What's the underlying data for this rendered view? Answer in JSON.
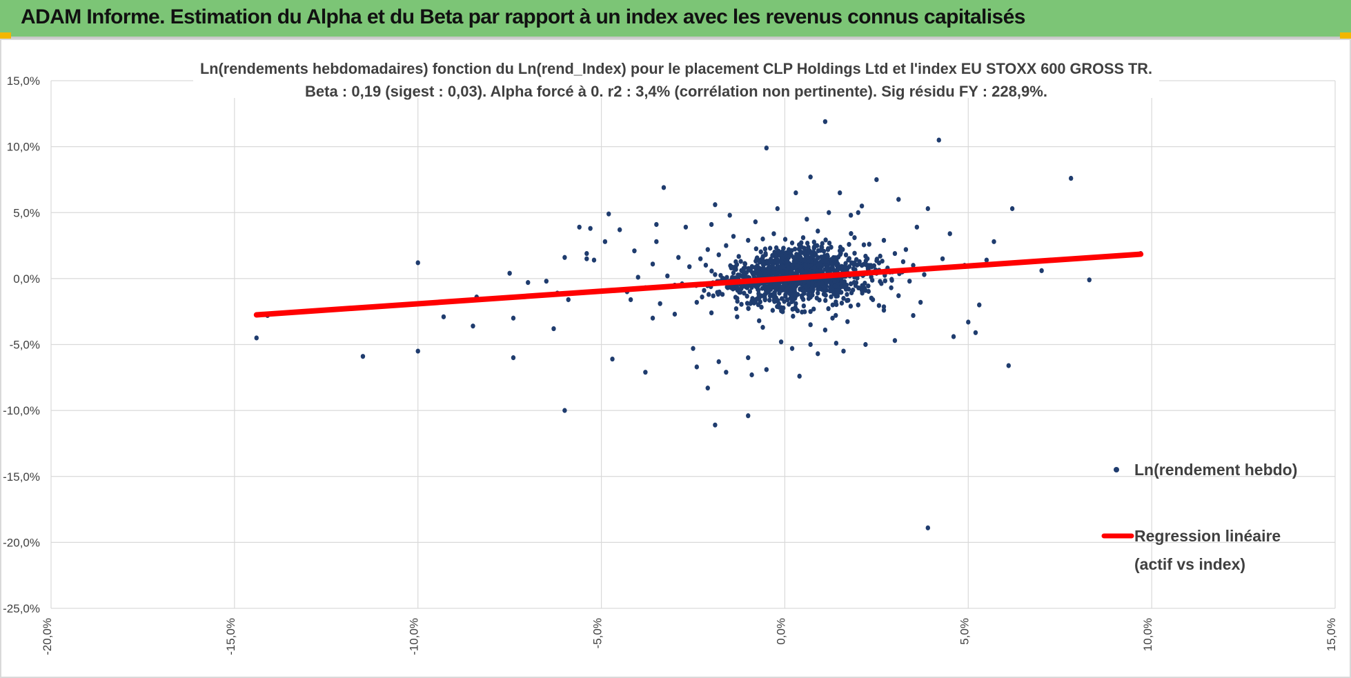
{
  "banner": {
    "title": "ADAM Informe. Estimation du Alpha et du Beta par rapport à un index avec les revenus connus capitalisés",
    "background": "#7cc576",
    "corner_color": "#f2b700"
  },
  "chart_data": {
    "type": "scatter",
    "title_line1": "Ln(rendements hebdomadaires) fonction du Ln(rend_Index) pour le placement CLP Holdings Ltd et l'index EU STOXX 600 GROSS TR.",
    "title_line2": "Beta : 0,19 (sigest : 0,03). Alpha forcé à 0. r2 : 3,4% (corrélation non pertinente). Sig résidu FY : 228,9%.",
    "xlim": [
      -20,
      15
    ],
    "ylim": [
      -25,
      15
    ],
    "x_ticks": [
      -20,
      -15,
      -10,
      -5,
      0,
      5,
      10,
      15
    ],
    "y_ticks": [
      15,
      10,
      5,
      0,
      -5,
      -10,
      -15,
      -20,
      -25
    ],
    "x_tick_labels": [
      "-20,0%",
      "-15,0%",
      "-10,0%",
      "-5,0%",
      "0,0%",
      "5,0%",
      "10,0%",
      "15,0%"
    ],
    "y_tick_labels": [
      "15,0%",
      "10,0%",
      "5,0%",
      "0,0%",
      "-5,0%",
      "-10,0%",
      "-15,0%",
      "-20,0%",
      "-25,0%"
    ],
    "grid": true,
    "legend_position": "right",
    "series": [
      {
        "name": "Ln(rendement hebdo)",
        "color": "#1f3c6e",
        "points": [
          [
            -14.4,
            -4.5
          ],
          [
            -14.1,
            -2.8
          ],
          [
            -11.5,
            -5.9
          ],
          [
            -10.0,
            1.2
          ],
          [
            -10.0,
            -5.5
          ],
          [
            -9.3,
            -2.9
          ],
          [
            -8.5,
            -3.6
          ],
          [
            -8.4,
            -1.4
          ],
          [
            -7.5,
            0.4
          ],
          [
            -7.4,
            -6.0
          ],
          [
            -7.4,
            -3.0
          ],
          [
            -7.0,
            -0.3
          ],
          [
            -6.5,
            -0.2
          ],
          [
            -6.3,
            -3.8
          ],
          [
            -6.2,
            -1.1
          ],
          [
            -6.0,
            1.6
          ],
          [
            -6.0,
            -10.0
          ],
          [
            -5.9,
            -1.6
          ],
          [
            -5.6,
            3.9
          ],
          [
            -5.4,
            1.9
          ],
          [
            -5.4,
            1.5
          ],
          [
            -5.3,
            3.8
          ],
          [
            -5.2,
            1.4
          ],
          [
            -4.9,
            2.8
          ],
          [
            -4.8,
            4.9
          ],
          [
            -4.7,
            -6.1
          ],
          [
            -4.5,
            3.7
          ],
          [
            -4.2,
            -1.6
          ],
          [
            -4.0,
            0.1
          ],
          [
            -3.8,
            -7.1
          ],
          [
            -3.6,
            -3.0
          ],
          [
            -3.5,
            4.1
          ],
          [
            -3.5,
            2.8
          ],
          [
            -3.3,
            6.9
          ],
          [
            -3.0,
            -0.5
          ],
          [
            -2.7,
            3.9
          ],
          [
            -2.5,
            -5.3
          ],
          [
            -2.4,
            -6.7
          ],
          [
            -2.1,
            -8.3
          ],
          [
            -2.0,
            4.1
          ],
          [
            -1.9,
            5.6
          ],
          [
            -1.9,
            -11.1
          ],
          [
            -1.8,
            -6.3
          ],
          [
            -1.6,
            -7.1
          ],
          [
            -1.5,
            4.8
          ],
          [
            -1.4,
            3.2
          ],
          [
            -1.3,
            -1.5
          ],
          [
            -1.0,
            -10.4
          ],
          [
            -1.0,
            -6.0
          ],
          [
            -0.9,
            -7.3
          ],
          [
            -0.8,
            4.3
          ],
          [
            -0.6,
            3.0
          ],
          [
            -0.5,
            9.9
          ],
          [
            -0.5,
            -6.9
          ],
          [
            -0.2,
            5.3
          ],
          [
            -0.1,
            -4.8
          ],
          [
            0.2,
            -5.3
          ],
          [
            0.3,
            6.5
          ],
          [
            0.4,
            -7.4
          ],
          [
            0.6,
            4.5
          ],
          [
            0.7,
            7.7
          ],
          [
            0.7,
            -5.0
          ],
          [
            0.9,
            -5.7
          ],
          [
            1.1,
            11.9
          ],
          [
            1.2,
            5.0
          ],
          [
            1.4,
            -4.9
          ],
          [
            1.5,
            6.5
          ],
          [
            1.6,
            -5.5
          ],
          [
            1.8,
            4.8
          ],
          [
            2.0,
            5.0
          ],
          [
            2.1,
            5.5
          ],
          [
            2.2,
            -5.0
          ],
          [
            2.5,
            7.5
          ],
          [
            2.7,
            2.9
          ],
          [
            3.0,
            -4.7
          ],
          [
            3.1,
            6.0
          ],
          [
            3.5,
            -2.8
          ],
          [
            3.6,
            3.9
          ],
          [
            3.9,
            -18.9
          ],
          [
            3.9,
            5.3
          ],
          [
            4.2,
            10.5
          ],
          [
            4.3,
            1.5
          ],
          [
            4.5,
            3.4
          ],
          [
            4.6,
            -4.4
          ],
          [
            4.9,
            1.0
          ],
          [
            5.0,
            -3.3
          ],
          [
            5.2,
            -4.1
          ],
          [
            5.3,
            -2.0
          ],
          [
            5.5,
            1.4
          ],
          [
            5.7,
            2.8
          ],
          [
            6.1,
            -6.6
          ],
          [
            6.2,
            5.3
          ],
          [
            7.0,
            0.6
          ],
          [
            7.8,
            7.6
          ],
          [
            8.3,
            -0.1
          ],
          [
            9.7,
            1.9
          ],
          [
            -2.8,
            -0.4
          ],
          [
            -2.6,
            0.9
          ],
          [
            -2.4,
            -1.8
          ],
          [
            -2.3,
            1.5
          ],
          [
            -2.2,
            -0.9
          ],
          [
            -2.1,
            2.2
          ],
          [
            -2.0,
            -2.6
          ],
          [
            -1.9,
            0.3
          ],
          [
            -1.8,
            1.8
          ],
          [
            -1.7,
            -1.2
          ],
          [
            -1.6,
            2.5
          ],
          [
            -1.5,
            -0.6
          ],
          [
            -1.4,
            0.8
          ],
          [
            -1.3,
            -2.9
          ],
          [
            -1.2,
            1.3
          ],
          [
            -1.1,
            -0.2
          ],
          [
            -1.0,
            2.9
          ],
          [
            -0.9,
            -1.7
          ],
          [
            -0.8,
            0.5
          ],
          [
            -0.7,
            -3.2
          ],
          [
            -0.6,
            1.6
          ],
          [
            -0.5,
            -0.8
          ],
          [
            -0.4,
            2.3
          ],
          [
            -0.3,
            -1.4
          ],
          [
            -0.2,
            0.2
          ],
          [
            -0.1,
            -2.2
          ],
          [
            0.0,
            1.1
          ],
          [
            0.1,
            -0.5
          ],
          [
            0.2,
            2.7
          ],
          [
            0.3,
            -1.9
          ],
          [
            0.4,
            0.6
          ],
          [
            0.5,
            -0.3
          ],
          [
            0.6,
            1.9
          ],
          [
            0.7,
            -2.5
          ],
          [
            0.8,
            0.9
          ],
          [
            0.9,
            -1.1
          ],
          [
            1.0,
            2.4
          ],
          [
            1.1,
            -0.6
          ],
          [
            1.2,
            1.4
          ],
          [
            1.3,
            -3.0
          ],
          [
            1.4,
            0.3
          ],
          [
            1.5,
            2.1
          ],
          [
            1.6,
            -1.5
          ],
          [
            1.7,
            0.7
          ],
          [
            1.8,
            -0.4
          ],
          [
            1.9,
            3.1
          ],
          [
            2.0,
            -2.0
          ],
          [
            2.1,
            1.0
          ],
          [
            2.2,
            -0.9
          ],
          [
            2.3,
            2.6
          ],
          [
            2.4,
            -1.6
          ],
          [
            2.5,
            0.4
          ],
          [
            2.6,
            1.7
          ],
          [
            2.7,
            -2.4
          ],
          [
            2.8,
            0.8
          ],
          [
            2.9,
            -0.7
          ],
          [
            3.0,
            1.9
          ],
          [
            3.1,
            -1.3
          ],
          [
            3.2,
            0.5
          ],
          [
            3.3,
            2.2
          ],
          [
            3.4,
            -0.2
          ],
          [
            3.5,
            1.0
          ],
          [
            3.7,
            -1.8
          ],
          [
            3.8,
            0.3
          ],
          [
            -3.8,
            -0.7
          ],
          [
            -3.6,
            1.1
          ],
          [
            -3.4,
            -1.9
          ],
          [
            -3.2,
            0.2
          ],
          [
            -3.0,
            -2.7
          ],
          [
            -2.9,
            1.6
          ],
          [
            -4.3,
            -1.0
          ],
          [
            -4.1,
            2.1
          ],
          [
            0.05,
            0.2
          ],
          [
            0.15,
            -0.6
          ],
          [
            0.25,
            1.3
          ],
          [
            0.35,
            -1.2
          ],
          [
            0.45,
            0.1
          ],
          [
            0.55,
            0.7
          ],
          [
            0.65,
            -0.9
          ],
          [
            0.75,
            1.5
          ],
          [
            0.85,
            -0.1
          ],
          [
            0.95,
            0.9
          ],
          [
            -0.05,
            0.5
          ],
          [
            -0.15,
            -0.9
          ],
          [
            -0.25,
            1.2
          ],
          [
            -0.35,
            -0.3
          ],
          [
            -0.45,
            0.8
          ],
          [
            -0.55,
            -1.4
          ],
          [
            0.1,
            2.0
          ],
          [
            0.3,
            -2.3
          ],
          [
            0.5,
            3.1
          ],
          [
            0.7,
            -3.5
          ],
          [
            0.9,
            3.6
          ],
          [
            1.1,
            -3.9
          ],
          [
            -0.3,
            3.4
          ],
          [
            -0.6,
            -3.7
          ]
        ]
      },
      {
        "name": "Regression linéaire\n(actif vs index)",
        "color": "#ff0000",
        "line": {
          "x": [
            -14.4,
            9.7
          ],
          "y": [
            -2.75,
            1.85
          ]
        }
      }
    ],
    "legend": {
      "scatter_label": "Ln(rendement hebdo)",
      "line_label_1": "Regression linéaire",
      "line_label_2": "(actif vs index)"
    },
    "cluster_note": "dense cloud of weekly points centred near (0%, 0%)"
  }
}
